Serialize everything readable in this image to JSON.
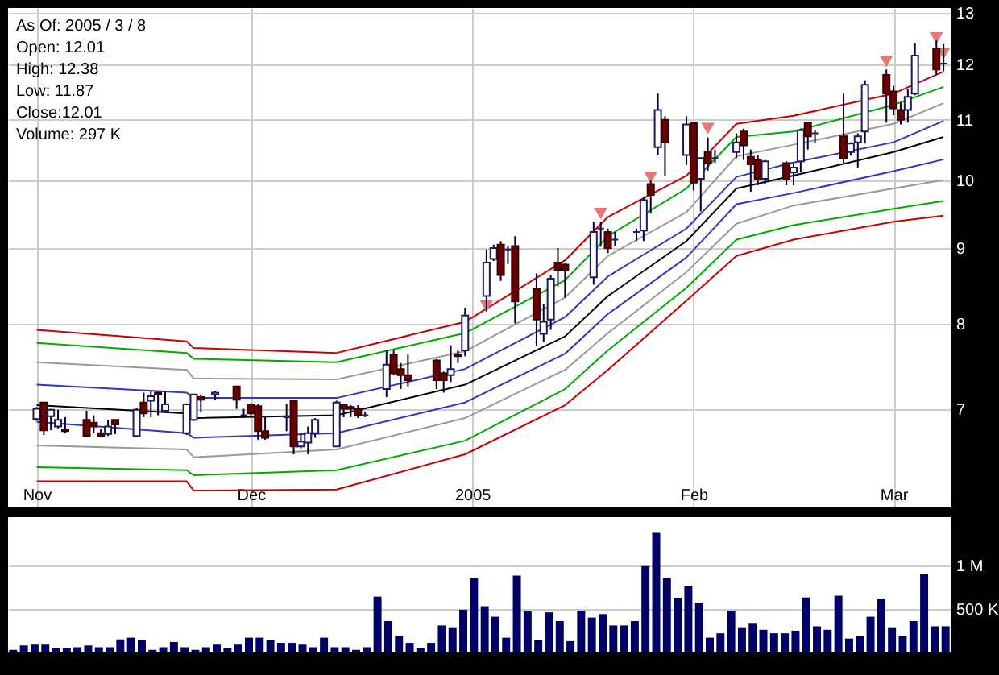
{
  "chart_data": [
    {
      "type": "candlestick",
      "annotations": [
        "As Of: 2005 / 3 / 8",
        "Open: 12.01",
        "High: 12.38",
        "Low: 11.87",
        "Close:12.01",
        "Volume: 297 K"
      ],
      "x": [
        "2004-11-01",
        "2004-11-02",
        "2004-11-03",
        "2004-11-04",
        "2004-11-05",
        "2004-11-08",
        "2004-11-09",
        "2004-11-10",
        "2004-11-11",
        "2004-11-12",
        "2004-11-15",
        "2004-11-16",
        "2004-11-17",
        "2004-11-18",
        "2004-11-19",
        "2004-11-22",
        "2004-11-23",
        "2004-11-24",
        "2004-11-26",
        "2004-11-29",
        "2004-11-30",
        "2004-12-01",
        "2004-12-02",
        "2004-12-03",
        "2004-12-06",
        "2004-12-07",
        "2004-12-08",
        "2004-12-09",
        "2004-12-10",
        "2004-12-13",
        "2004-12-14",
        "2004-12-15",
        "2004-12-16",
        "2004-12-17",
        "2004-12-20",
        "2004-12-21",
        "2004-12-22",
        "2004-12-23",
        "2004-12-27",
        "2004-12-28",
        "2004-12-29",
        "2004-12-30",
        "2004-12-31",
        "2005-01-03",
        "2005-01-04",
        "2005-01-05",
        "2005-01-06",
        "2005-01-07",
        "2005-01-10",
        "2005-01-11",
        "2005-01-12",
        "2005-01-13",
        "2005-01-14",
        "2005-01-18",
        "2005-01-19",
        "2005-01-20",
        "2005-01-21",
        "2005-01-24",
        "2005-01-25",
        "2005-01-26",
        "2005-01-27",
        "2005-01-28",
        "2005-01-31",
        "2005-02-01",
        "2005-02-02",
        "2005-02-03",
        "2005-02-04",
        "2005-02-07",
        "2005-02-08",
        "2005-02-09",
        "2005-02-10",
        "2005-02-11",
        "2005-02-14",
        "2005-02-15",
        "2005-02-16",
        "2005-02-17",
        "2005-02-18",
        "2005-02-22",
        "2005-02-23",
        "2005-02-24",
        "2005-02-25",
        "2005-02-28",
        "2005-03-01",
        "2005-03-02",
        "2005-03-03",
        "2005-03-04",
        "2005-03-07",
        "2005-03-08"
      ],
      "ohlc": [
        [
          6.89,
          7.02,
          6.87,
          7.0
        ],
        [
          7.07,
          7.07,
          6.72,
          6.77
        ],
        [
          6.92,
          7.0,
          6.77,
          6.99
        ],
        [
          6.81,
          6.99,
          6.79,
          6.88
        ],
        [
          6.78,
          6.91,
          6.74,
          6.76
        ],
        [
          6.88,
          6.98,
          6.7,
          6.71
        ],
        [
          6.85,
          6.93,
          6.74,
          6.81
        ],
        [
          6.74,
          6.78,
          6.7,
          6.71
        ],
        [
          6.73,
          6.88,
          6.71,
          6.81
        ],
        [
          6.88,
          6.88,
          6.73,
          6.83
        ],
        [
          6.71,
          7.01,
          6.71,
          6.99
        ],
        [
          7.07,
          7.18,
          6.91,
          6.95
        ],
        [
          7.09,
          7.2,
          6.91,
          7.14
        ],
        [
          7.18,
          7.19,
          6.93,
          7.16
        ],
        [
          6.98,
          7.2,
          6.96,
          7.05
        ],
        [
          6.74,
          7.06,
          6.72,
          7.05
        ],
        [
          6.88,
          7.16,
          6.87,
          7.16
        ],
        [
          7.13,
          7.16,
          6.96,
          7.1
        ],
        [
          7.16,
          7.2,
          7.1,
          7.18
        ],
        [
          7.25,
          7.25,
          7.0,
          7.1
        ],
        [
          6.93,
          7.0,
          6.9,
          6.93
        ],
        [
          7.05,
          7.06,
          6.93,
          6.95
        ],
        [
          7.03,
          7.05,
          6.67,
          6.76
        ],
        [
          6.76,
          6.92,
          6.67,
          6.69
        ],
        [
          6.91,
          7.05,
          6.76,
          6.91
        ],
        [
          7.09,
          7.09,
          6.52,
          6.6
        ],
        [
          6.6,
          6.74,
          6.58,
          6.65
        ],
        [
          6.64,
          6.81,
          6.52,
          6.74
        ],
        [
          6.74,
          6.9,
          6.69,
          6.88
        ],
        [
          6.6,
          7.09,
          6.6,
          7.07
        ],
        [
          7.05,
          7.05,
          6.91,
          7.0
        ],
        [
          7.02,
          7.04,
          6.91,
          7.0
        ],
        [
          7.0,
          7.04,
          6.9,
          6.93
        ],
        [
          6.93,
          6.97,
          6.91,
          6.93
        ],
        [
          7.22,
          7.68,
          7.13,
          7.5
        ],
        [
          7.62,
          7.68,
          7.38,
          7.4
        ],
        [
          7.45,
          7.52,
          7.22,
          7.38
        ],
        [
          7.38,
          7.62,
          7.25,
          7.32
        ],
        [
          7.55,
          7.57,
          7.22,
          7.32
        ],
        [
          7.4,
          7.42,
          7.18,
          7.32
        ],
        [
          7.38,
          7.73,
          7.3,
          7.45
        ],
        [
          7.62,
          7.67,
          7.52,
          7.6
        ],
        [
          7.67,
          8.2,
          7.6,
          8.1
        ],
        [
          8.35,
          8.98,
          8.15,
          8.8
        ],
        [
          8.85,
          9.05,
          8.82,
          9.0
        ],
        [
          9.05,
          9.1,
          8.55,
          8.63
        ],
        [
          8.98,
          9.03,
          8.78,
          8.98
        ],
        [
          9.03,
          9.17,
          8.0,
          8.28
        ],
        [
          8.45,
          8.65,
          7.72,
          8.05
        ],
        [
          7.87,
          8.25,
          7.77,
          8.02
        ],
        [
          8.05,
          8.63,
          7.92,
          8.58
        ],
        [
          8.8,
          9.0,
          8.48,
          8.7
        ],
        [
          8.77,
          8.8,
          8.33,
          8.7
        ],
        [
          8.6,
          9.38,
          8.5,
          9.23
        ],
        [
          9.28,
          9.38,
          9.02,
          9.28
        ],
        [
          9.23,
          9.28,
          8.93,
          9.0
        ],
        [
          9.12,
          9.23,
          9.03,
          9.12
        ],
        [
          9.23,
          9.28,
          9.1,
          9.23
        ],
        [
          9.25,
          9.75,
          9.1,
          9.7
        ],
        [
          9.95,
          10.0,
          9.5,
          9.78
        ],
        [
          10.54,
          11.46,
          10.41,
          11.17
        ],
        [
          11.0,
          11.06,
          10.08,
          10.62
        ],
        [
          10.41,
          11.06,
          10.25,
          10.92
        ],
        [
          10.95,
          10.95,
          9.85,
          9.97
        ],
        [
          10.03,
          10.36,
          9.53,
          10.36
        ],
        [
          10.46,
          10.7,
          10.16,
          10.28
        ],
        [
          10.36,
          10.5,
          10.28,
          10.36
        ],
        [
          10.46,
          10.77,
          10.36,
          10.62
        ],
        [
          10.8,
          10.85,
          10.33,
          10.57
        ],
        [
          10.38,
          10.5,
          9.83,
          10.26
        ],
        [
          10.33,
          10.41,
          9.93,
          10.03
        ],
        [
          10.03,
          10.33,
          9.95,
          10.31
        ],
        [
          10.28,
          10.31,
          9.93,
          10.03
        ],
        [
          10.13,
          10.28,
          9.93,
          10.21
        ],
        [
          10.31,
          10.85,
          10.13,
          10.82
        ],
        [
          10.95,
          10.95,
          10.5,
          10.72
        ],
        [
          10.77,
          10.82,
          10.6,
          10.77
        ],
        [
          10.72,
          11.46,
          10.28,
          10.36
        ],
        [
          10.46,
          10.62,
          10.4,
          10.6
        ],
        [
          10.62,
          10.77,
          10.21,
          10.72
        ],
        [
          10.8,
          11.7,
          10.6,
          11.62
        ],
        [
          11.8,
          11.9,
          10.95,
          11.46
        ],
        [
          11.5,
          11.6,
          11.08,
          11.2
        ],
        [
          11.17,
          11.3,
          10.92,
          11.0
        ],
        [
          11.17,
          11.55,
          10.95,
          11.4
        ],
        [
          11.46,
          12.4,
          11.43,
          12.16
        ],
        [
          12.3,
          12.45,
          11.8,
          11.9
        ],
        [
          12.01,
          12.38,
          11.87,
          12.01
        ]
      ],
      "series": [
        {
          "type": "line",
          "color": "#cc0000",
          "x": [
            "2004-11-01",
            "2004-11-22",
            "2004-11-23",
            "2004-12-13",
            "2004-12-31",
            "2005-01-14",
            "2005-01-20",
            "2005-01-31",
            "2005-02-07",
            "2005-02-15",
            "2005-03-01",
            "2005-03-08"
          ],
          "values": [
            7.92,
            7.78,
            7.7,
            7.64,
            8.02,
            8.83,
            9.45,
            10.08,
            10.93,
            11.07,
            11.46,
            11.86
          ]
        },
        {
          "type": "line",
          "color": "#00aa00",
          "x": [
            "2004-11-01",
            "2004-11-22",
            "2004-11-23",
            "2004-12-13",
            "2004-12-31",
            "2005-01-14",
            "2005-01-20",
            "2005-01-31",
            "2005-02-07",
            "2005-02-15",
            "2005-03-01",
            "2005-03-08"
          ],
          "values": [
            7.76,
            7.64,
            7.57,
            7.53,
            7.88,
            8.56,
            9.17,
            9.88,
            10.71,
            10.8,
            11.26,
            11.58
          ]
        },
        {
          "type": "line",
          "color": "#999999",
          "x": [
            "2004-11-01",
            "2004-11-22",
            "2004-11-23",
            "2004-12-13",
            "2004-12-31",
            "2005-01-14",
            "2005-01-20",
            "2005-01-31",
            "2005-02-07",
            "2005-02-15",
            "2005-03-01",
            "2005-03-08"
          ],
          "values": [
            7.53,
            7.44,
            7.34,
            7.33,
            7.66,
            8.33,
            8.89,
            9.52,
            10.39,
            10.58,
            10.93,
            11.29
          ]
        },
        {
          "type": "line",
          "color": "#3333cc",
          "x": [
            "2004-11-01",
            "2004-11-22",
            "2004-11-23",
            "2004-12-13",
            "2004-12-31",
            "2005-01-14",
            "2005-01-20",
            "2005-01-31",
            "2005-02-07",
            "2005-02-15",
            "2005-03-01",
            "2005-03-08"
          ],
          "values": [
            7.27,
            7.18,
            7.12,
            7.12,
            7.45,
            8.08,
            8.61,
            9.28,
            10.06,
            10.29,
            10.62,
            10.98
          ]
        },
        {
          "type": "line",
          "color": "#000000",
          "x": [
            "2004-11-01",
            "2004-11-22",
            "2004-11-23",
            "2004-12-13",
            "2004-12-31",
            "2005-01-14",
            "2005-01-20",
            "2005-01-31",
            "2005-02-07",
            "2005-02-15",
            "2005-03-01",
            "2005-03-08"
          ],
          "values": [
            7.04,
            6.95,
            6.9,
            6.93,
            7.27,
            7.84,
            8.35,
            9.1,
            9.88,
            10.08,
            10.46,
            10.71
          ]
        },
        {
          "type": "line",
          "color": "#3333cc",
          "x": [
            "2004-11-01",
            "2004-11-22",
            "2004-11-23",
            "2004-12-13",
            "2004-12-31",
            "2005-01-14",
            "2005-01-20",
            "2005-01-31",
            "2005-02-07",
            "2005-02-15",
            "2005-03-01",
            "2005-03-08"
          ],
          "values": [
            6.86,
            6.74,
            6.69,
            6.74,
            7.07,
            7.63,
            8.12,
            8.87,
            9.64,
            9.81,
            10.15,
            10.34
          ]
        },
        {
          "type": "line",
          "color": "#999999",
          "x": [
            "2004-11-01",
            "2004-11-22",
            "2004-11-23",
            "2004-12-13",
            "2004-12-31",
            "2005-01-14",
            "2005-01-20",
            "2005-01-31",
            "2005-02-07",
            "2005-02-15",
            "2005-03-01",
            "2005-03-08"
          ],
          "values": [
            6.61,
            6.57,
            6.49,
            6.57,
            6.9,
            7.44,
            7.88,
            8.67,
            9.35,
            9.62,
            9.88,
            10.01
          ]
        },
        {
          "type": "line",
          "color": "#00aa00",
          "x": [
            "2004-11-01",
            "2004-11-22",
            "2004-11-23",
            "2004-12-13",
            "2004-12-31",
            "2005-01-14",
            "2005-01-20",
            "2005-01-31",
            "2005-02-07",
            "2005-02-15",
            "2005-03-01",
            "2005-03-08"
          ],
          "values": [
            6.39,
            6.36,
            6.31,
            6.36,
            6.66,
            7.22,
            7.67,
            8.46,
            9.12,
            9.33,
            9.57,
            9.69
          ]
        },
        {
          "type": "line",
          "color": "#cc0000",
          "x": [
            "2004-11-01",
            "2004-11-22",
            "2004-11-23",
            "2004-12-13",
            "2004-12-31",
            "2005-01-14",
            "2005-01-20",
            "2005-01-31",
            "2005-02-07",
            "2005-02-15",
            "2005-03-01",
            "2005-03-08"
          ],
          "values": [
            6.25,
            6.25,
            6.16,
            6.17,
            6.52,
            7.04,
            7.44,
            8.29,
            8.89,
            9.12,
            9.38,
            9.47
          ]
        },
        {
          "type": "scatter",
          "marker": "triangle",
          "color": "#e87878",
          "x": [
            "2005-01-03",
            "2005-01-19",
            "2005-01-26",
            "2005-02-03",
            "2005-02-28",
            "2005-03-07",
            "2005-03-08"
          ],
          "values": [
            8.22,
            9.5,
            10.05,
            10.85,
            12.05,
            12.5,
            12.2
          ]
        }
      ],
      "xlim": [
        "2004-10-28",
        "2005-03-09"
      ],
      "xticks": [
        {
          "value": "2004-11-01",
          "label": "Nov"
        },
        {
          "value": "2004-12-01",
          "label": "Dec"
        },
        {
          "value": "2005-01-01",
          "label": "2005"
        },
        {
          "value": "2005-02-01",
          "label": "Feb"
        },
        {
          "value": "2005-03-01",
          "label": "Mar"
        }
      ],
      "ylim": [
        6,
        13.1
      ],
      "yticks": [
        7,
        8,
        9,
        10,
        11,
        12,
        13
      ],
      "log": "y",
      "grid": true
    },
    {
      "type": "bar",
      "color": "#000066",
      "grid": "y",
      "categories": [
        null,
        null,
        null,
        null,
        null,
        null,
        null,
        null,
        null,
        null,
        null,
        null,
        null,
        null,
        null,
        null,
        null,
        null,
        null,
        null,
        null,
        null,
        null,
        null,
        null,
        null,
        null,
        null,
        null,
        null,
        null,
        null,
        null,
        null,
        null,
        null,
        null,
        null,
        null,
        null,
        null,
        null,
        null,
        null,
        null,
        null,
        null,
        null,
        null,
        null,
        null,
        null,
        null,
        null,
        null,
        null,
        null,
        null,
        null,
        null,
        null,
        null,
        null,
        null,
        null,
        null,
        null,
        null,
        null,
        null,
        null,
        null,
        null,
        null,
        null,
        null,
        null,
        null,
        null,
        null,
        null,
        null,
        null,
        null,
        null,
        null,
        null,
        null
      ],
      "values": [
        30000,
        80000,
        90000,
        90000,
        50000,
        50000,
        60000,
        80000,
        60000,
        60000,
        150000,
        170000,
        140000,
        30000,
        60000,
        120000,
        60000,
        30000,
        60000,
        90000,
        50000,
        90000,
        170000,
        170000,
        140000,
        110000,
        110000,
        90000,
        60000,
        170000,
        60000,
        60000,
        30000,
        60000,
        640000,
        360000,
        190000,
        110000,
        50000,
        110000,
        310000,
        280000,
        490000,
        850000,
        530000,
        410000,
        170000,
        880000,
        470000,
        140000,
        460000,
        360000,
        130000,
        480000,
        400000,
        440000,
        310000,
        310000,
        360000,
        990000,
        1370000,
        850000,
        620000,
        760000,
        570000,
        170000,
        220000,
        480000,
        280000,
        330000,
        260000,
        220000,
        220000,
        250000,
        630000,
        300000,
        260000,
        650000,
        160000,
        190000,
        410000,
        610000,
        280000,
        190000,
        360000,
        900000,
        300000,
        300000
      ],
      "ylim": [
        0,
        1550000
      ],
      "yticks": [
        {
          "value": 500000,
          "label": "500 K"
        },
        {
          "value": 1000000,
          "label": "1 M"
        }
      ]
    }
  ]
}
